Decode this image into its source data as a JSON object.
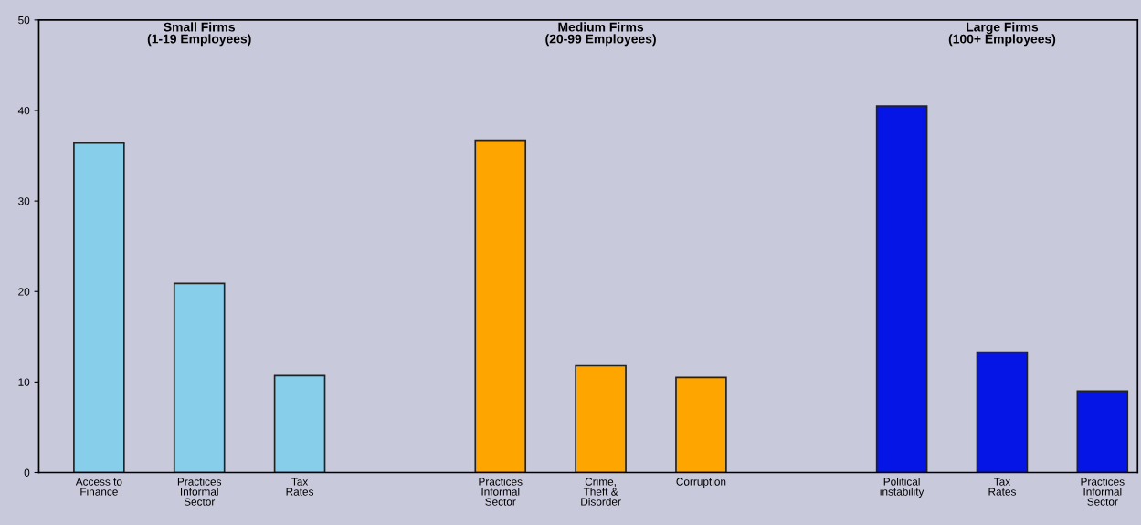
{
  "chart_data": {
    "type": "bar",
    "categories": [
      "Access to\nFinance",
      "Practices\nInformal\nSector",
      "Tax\nRates",
      null,
      "Practices\nInformal\nSector",
      "Crime,\nTheft &\nDisorder",
      "Corruption",
      null,
      "Political\ninstability",
      "Tax\nRates",
      "Practices\nInformal\nSector"
    ],
    "series": [
      {
        "color": "#87ceeb",
        "values": [
          36.4,
          20.9,
          10.7,
          null,
          null,
          null,
          null,
          null,
          null,
          null,
          null
        ]
      },
      {
        "color": "#ffa500",
        "values": [
          null,
          null,
          null,
          null,
          36.7,
          11.8,
          10.5,
          null,
          null,
          null,
          null
        ]
      },
      {
        "color": "#0515e6",
        "values": [
          null,
          null,
          null,
          null,
          null,
          null,
          null,
          null,
          40.5,
          13.3,
          9.0
        ]
      }
    ],
    "annotations": [
      "Small Firms\n(1-19 Employees)",
      "Medium Firms\n(20-99 Employees)",
      "Large Firms\n(100+ Employees)"
    ],
    "ylim": [
      0,
      50
    ],
    "yticks": [
      0,
      10,
      20,
      30,
      40,
      50
    ],
    "grid": false,
    "legend": false
  }
}
